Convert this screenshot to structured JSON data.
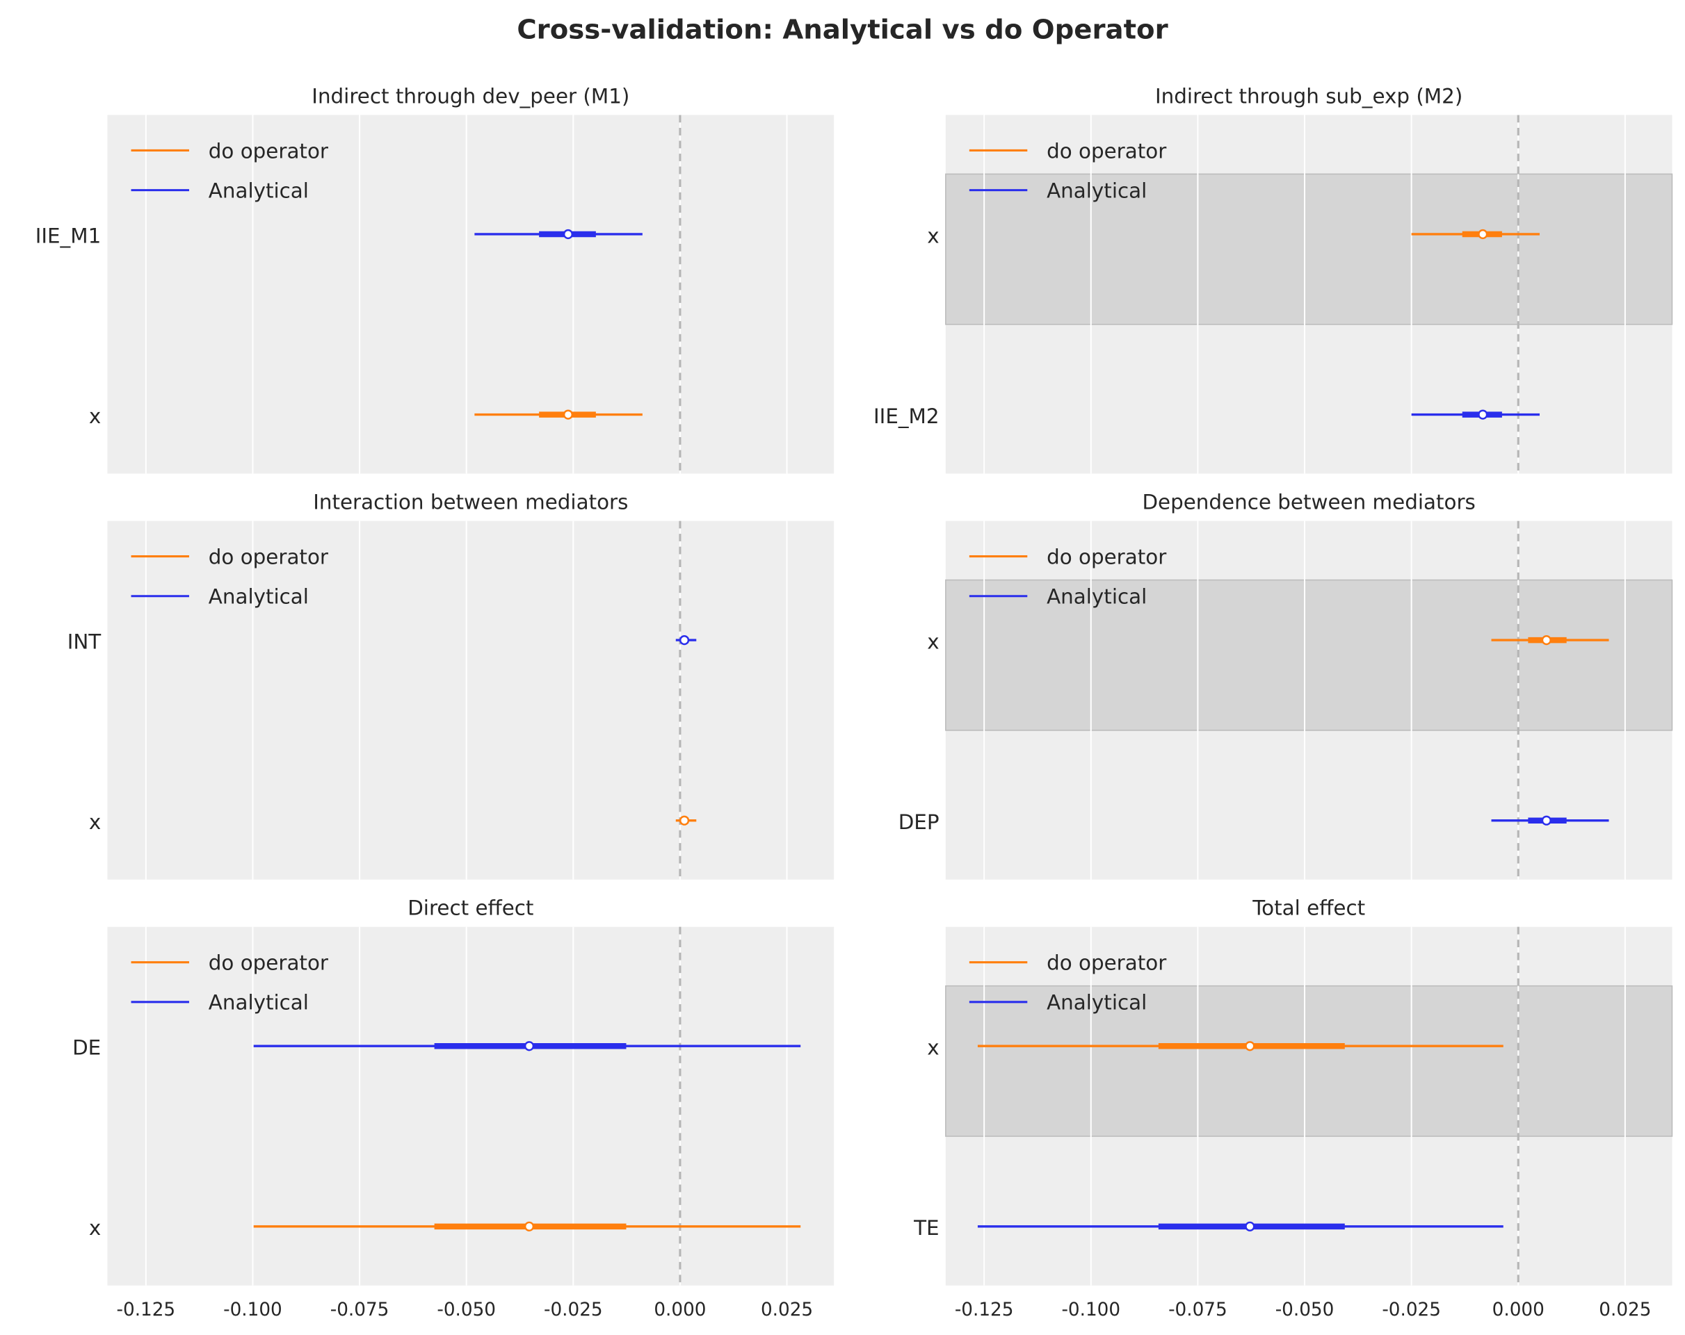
{
  "chart_data": {
    "type": "forest",
    "title": "Cross-validation: Analytical vs do Operator",
    "xlim": [
      -0.134,
      0.036
    ],
    "xticks": [
      "-0.125",
      "-0.100",
      "-0.075",
      "-0.050",
      "-0.025",
      "0.000",
      "0.025"
    ],
    "xtick_values": [
      -0.125,
      -0.1,
      -0.075,
      -0.05,
      -0.025,
      0,
      0.025
    ],
    "reference_line": 0,
    "legend": [
      "do operator",
      "Analytical"
    ],
    "colors": {
      "do operator": "#ff7f0e",
      "Analytical": "#2a2eec",
      "background": "#eeeeee",
      "band": "#d5d5d5"
    },
    "panels": [
      {
        "title": "Indirect through dev_peer (M1)",
        "rows": [
          {
            "label": "IIE_M1",
            "series": "Analytical",
            "low": -0.0481,
            "q_low": -0.033,
            "median": -0.0262,
            "q_high": -0.0197,
            "high": -0.0088
          },
          {
            "label": "x",
            "series": "do operator",
            "low": -0.0481,
            "q_low": -0.033,
            "median": -0.0262,
            "q_high": -0.0197,
            "high": -0.0088
          }
        ],
        "band": false
      },
      {
        "title": "Indirect through sub_exp (M2)",
        "rows": [
          {
            "label": "x",
            "series": "do operator",
            "low": -0.025,
            "q_low": -0.0131,
            "median": -0.0083,
            "q_high": -0.0038,
            "high": 0.005
          },
          {
            "label": "IIE_M2",
            "series": "Analytical",
            "low": -0.025,
            "q_low": -0.0131,
            "median": -0.0083,
            "q_high": -0.0038,
            "high": 0.005
          }
        ],
        "band": true
      },
      {
        "title": "Interaction between mediators",
        "rows": [
          {
            "label": "INT",
            "series": "Analytical",
            "low": -0.001,
            "q_low": 0.0,
            "median": 0.001,
            "q_high": 0.002,
            "high": 0.0038
          },
          {
            "label": "x",
            "series": "do operator",
            "low": -0.001,
            "q_low": 0.0,
            "median": 0.001,
            "q_high": 0.002,
            "high": 0.0038
          }
        ],
        "band": false
      },
      {
        "title": "Dependence between mediators",
        "rows": [
          {
            "label": "x",
            "series": "do operator",
            "low": -0.0063,
            "q_low": 0.0023,
            "median": 0.0066,
            "q_high": 0.0113,
            "high": 0.0212
          },
          {
            "label": "DEP",
            "series": "Analytical",
            "low": -0.0063,
            "q_low": 0.0023,
            "median": 0.0066,
            "q_high": 0.0113,
            "high": 0.0212
          }
        ],
        "band": true
      },
      {
        "title": "Direct effect",
        "rows": [
          {
            "label": "DE",
            "series": "Analytical",
            "low": -0.0998,
            "q_low": -0.0575,
            "median": -0.0353,
            "q_high": -0.0126,
            "high": 0.0282
          },
          {
            "label": "x",
            "series": "do operator",
            "low": -0.0998,
            "q_low": -0.0575,
            "median": -0.0353,
            "q_high": -0.0126,
            "high": 0.0282
          }
        ],
        "band": false
      },
      {
        "title": "Total effect",
        "rows": [
          {
            "label": "x",
            "series": "do operator",
            "low": -0.1265,
            "q_low": -0.0842,
            "median": -0.0628,
            "q_high": -0.0406,
            "high": -0.0035
          },
          {
            "label": "TE",
            "series": "Analytical",
            "low": -0.1265,
            "q_low": -0.0842,
            "median": -0.0628,
            "q_high": -0.0406,
            "high": -0.0035
          }
        ],
        "band": true
      }
    ]
  }
}
